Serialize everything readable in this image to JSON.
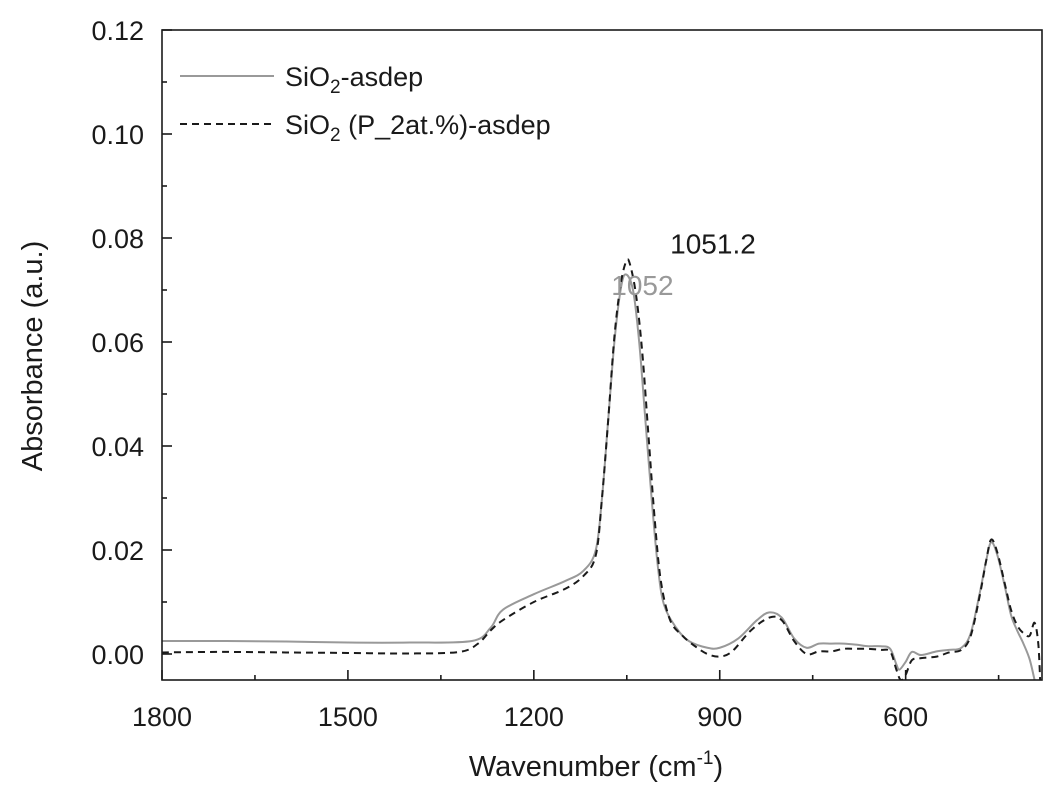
{
  "chart_data": {
    "type": "line",
    "title": "",
    "xlabel": {
      "main": "Wavenumber (cm",
      "sup": "-1",
      "end": ")"
    },
    "ylabel": "Absorbance (a.u.)",
    "xlim": [
      1800,
      380
    ],
    "ylim": [
      -0.005,
      0.12
    ],
    "x_reversed": true,
    "x_ticks": [
      1800,
      1500,
      1200,
      900,
      600
    ],
    "x_tick_labels": [
      "1800",
      "1500",
      "1200",
      "900",
      "600"
    ],
    "y_ticks": [
      0.0,
      0.02,
      0.04,
      0.06,
      0.08,
      0.1,
      0.12
    ],
    "y_tick_labels": [
      "0.00",
      "0.02",
      "0.04",
      "0.06",
      "0.08",
      "0.10",
      "0.12"
    ],
    "grid": false,
    "legend_position": "top-left",
    "series": [
      {
        "name": {
          "pre": "SiO",
          "sub": "2",
          "post": "-asdep"
        },
        "color": "#999999",
        "dash": "solid",
        "points": [
          [
            1800,
            0.0025
          ],
          [
            1700,
            0.0025
          ],
          [
            1600,
            0.0024
          ],
          [
            1500,
            0.0022
          ],
          [
            1400,
            0.0022
          ],
          [
            1300,
            0.0025
          ],
          [
            1270,
            0.005
          ],
          [
            1250,
            0.0085
          ],
          [
            1200,
            0.0115
          ],
          [
            1150,
            0.014
          ],
          [
            1120,
            0.016
          ],
          [
            1100,
            0.02
          ],
          [
            1090,
            0.03
          ],
          [
            1080,
            0.045
          ],
          [
            1070,
            0.06
          ],
          [
            1060,
            0.07
          ],
          [
            1052,
            0.073
          ],
          [
            1040,
            0.07
          ],
          [
            1030,
            0.06
          ],
          [
            1020,
            0.045
          ],
          [
            1010,
            0.03
          ],
          [
            1000,
            0.017
          ],
          [
            990,
            0.0095
          ],
          [
            970,
            0.005
          ],
          [
            950,
            0.0025
          ],
          [
            920,
            0.0012
          ],
          [
            900,
            0.0012
          ],
          [
            870,
            0.003
          ],
          [
            840,
            0.0065
          ],
          [
            820,
            0.008
          ],
          [
            800,
            0.007
          ],
          [
            780,
            0.003
          ],
          [
            760,
            0.0012
          ],
          [
            740,
            0.002
          ],
          [
            720,
            0.002
          ],
          [
            700,
            0.002
          ],
          [
            680,
            0.0018
          ],
          [
            660,
            0.0015
          ],
          [
            640,
            0.0015
          ],
          [
            625,
            0.001
          ],
          [
            615,
            -0.002
          ],
          [
            610,
            -0.003
          ],
          [
            600,
            -0.0015
          ],
          [
            590,
            0.0004
          ],
          [
            575,
            -0.0002
          ],
          [
            550,
            0.0005
          ],
          [
            530,
            0.0008
          ],
          [
            510,
            0.0012
          ],
          [
            495,
            0.004
          ],
          [
            480,
            0.012
          ],
          [
            470,
            0.018
          ],
          [
            462,
            0.0215
          ],
          [
            452,
            0.019
          ],
          [
            440,
            0.013
          ],
          [
            430,
            0.0075
          ],
          [
            420,
            0.0045
          ],
          [
            410,
            0.002
          ],
          [
            400,
            -0.001
          ],
          [
            392,
            -0.005
          ]
        ]
      },
      {
        "name": {
          "pre": "SiO",
          "sub": "2",
          "post": " (P_2at.%)-asdep"
        },
        "color": "#1a1a1a",
        "dash": "dashed",
        "points": [
          [
            1800,
            0.0003
          ],
          [
            1700,
            0.0004
          ],
          [
            1600,
            0.0003
          ],
          [
            1500,
            0.0002
          ],
          [
            1400,
            0.0001
          ],
          [
            1320,
            0.0004
          ],
          [
            1290,
            0.002
          ],
          [
            1270,
            0.0045
          ],
          [
            1250,
            0.0065
          ],
          [
            1200,
            0.01
          ],
          [
            1150,
            0.0125
          ],
          [
            1120,
            0.015
          ],
          [
            1100,
            0.019
          ],
          [
            1090,
            0.03
          ],
          [
            1080,
            0.045
          ],
          [
            1070,
            0.061
          ],
          [
            1060,
            0.071
          ],
          [
            1051,
            0.0755
          ],
          [
            1045,
            0.075
          ],
          [
            1035,
            0.069
          ],
          [
            1025,
            0.058
          ],
          [
            1015,
            0.042
          ],
          [
            1005,
            0.026
          ],
          [
            995,
            0.014
          ],
          [
            980,
            0.0065
          ],
          [
            960,
            0.0035
          ],
          [
            940,
            0.0015
          ],
          [
            920,
            0.0
          ],
          [
            900,
            -0.0005
          ],
          [
            880,
            0.0005
          ],
          [
            850,
            0.0045
          ],
          [
            820,
            0.007
          ],
          [
            800,
            0.0065
          ],
          [
            780,
            0.0025
          ],
          [
            760,
            0.0
          ],
          [
            740,
            0.0005
          ],
          [
            720,
            0.0005
          ],
          [
            700,
            0.001
          ],
          [
            680,
            0.001
          ],
          [
            660,
            0.001
          ],
          [
            640,
            0.0008
          ],
          [
            625,
            0.0005
          ],
          [
            615,
            -0.003
          ],
          [
            608,
            -0.005
          ],
          [
            600,
            -0.004
          ],
          [
            590,
            -0.0012
          ],
          [
            575,
            -0.0008
          ],
          [
            550,
            -0.0005
          ],
          [
            530,
            0.0003
          ],
          [
            510,
            0.0008
          ],
          [
            495,
            0.0035
          ],
          [
            480,
            0.0115
          ],
          [
            470,
            0.018
          ],
          [
            462,
            0.022
          ],
          [
            452,
            0.0195
          ],
          [
            440,
            0.0135
          ],
          [
            430,
            0.0085
          ],
          [
            420,
            0.0055
          ],
          [
            410,
            0.004
          ],
          [
            400,
            0.0035
          ],
          [
            392,
            0.006
          ],
          [
            386,
            0.002
          ],
          [
            383,
            -0.005
          ]
        ]
      }
    ],
    "annotations": [
      {
        "text": "1052",
        "x": 1075,
        "y": 0.069,
        "color": "#999999"
      },
      {
        "text": "1051.2",
        "x": 980,
        "y": 0.077,
        "color": "#1a1a1a"
      }
    ]
  }
}
